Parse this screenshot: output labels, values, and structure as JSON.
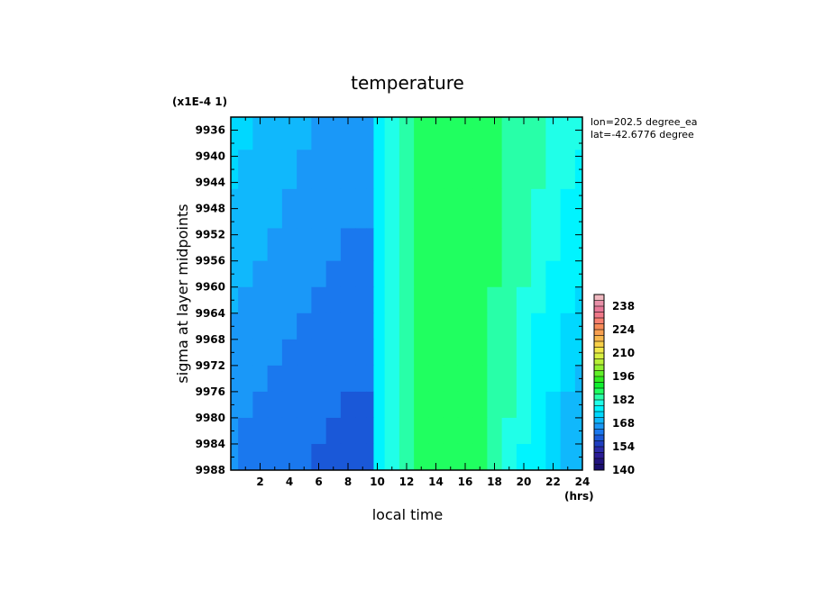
{
  "chart_data": {
    "type": "heatmap",
    "title": "temperature",
    "xlabel": "local time",
    "x_unit": "(hrs)",
    "ylabel": "sigma at layer midpoints",
    "y_scale_note": "(x1E-4 1)",
    "annotations": [
      "lon=202.5 degree_ea",
      "lat=-42.6776 degree"
    ],
    "xlim": [
      0,
      24
    ],
    "x_ticks": [
      "2",
      "4",
      "6",
      "8",
      "10",
      "12",
      "14",
      "16",
      "18",
      "20",
      "22",
      "24"
    ],
    "ylim": [
      9934,
      9988
    ],
    "y_ticks": [
      "9936",
      "9940",
      "9944",
      "9948",
      "9952",
      "9956",
      "9960",
      "9964",
      "9968",
      "9972",
      "9976",
      "9980",
      "9984",
      "9988"
    ],
    "colorbar": {
      "ticks": [
        "238",
        "224",
        "210",
        "196",
        "182",
        "168",
        "154",
        "140"
      ],
      "levels": [
        140,
        143.5,
        147,
        150.5,
        154,
        157.5,
        161,
        164.5,
        168,
        171.5,
        175,
        178.5,
        182,
        185.5,
        189,
        192.5,
        196,
        199.5,
        203,
        206.5,
        210,
        213.5,
        217,
        220.5,
        224,
        227.5,
        231,
        234.5,
        238,
        241.5,
        245
      ],
      "colors": [
        "#1a0f6e",
        "#22147e",
        "#2a1c96",
        "#2a2aa8",
        "#1f3ec0",
        "#1a58d8",
        "#1a78ee",
        "#1a98f8",
        "#10b8fc",
        "#00d8ff",
        "#00f4ff",
        "#20ffe8",
        "#28ffa8",
        "#20ff60",
        "#10f030",
        "#30ee20",
        "#60f028",
        "#90f030",
        "#b8f038",
        "#d8f040",
        "#f0e848",
        "#f8d048",
        "#f8b84c",
        "#f8a050",
        "#f88c58",
        "#f88070",
        "#f07888",
        "#e87898",
        "#e890a8",
        "#f0b8c0"
      ]
    },
    "x": [
      0,
      1,
      2,
      3,
      4,
      5,
      6,
      7,
      8,
      9,
      9.5,
      10,
      11,
      12,
      13,
      14,
      15,
      16,
      17,
      18,
      19,
      20,
      21,
      22,
      23,
      24
    ],
    "y": [
      9936,
      9942,
      9948,
      9954,
      9958,
      9962,
      9966,
      9970,
      9974,
      9978,
      9982,
      9986
    ],
    "values": [
      [
        172,
        172,
        171,
        170,
        169,
        168,
        167,
        166,
        166,
        166,
        166,
        177,
        181,
        184,
        186,
        187,
        187.5,
        187.5,
        187,
        186,
        185,
        183,
        182,
        181,
        180,
        179
      ],
      [
        172,
        171,
        170,
        169,
        168,
        167,
        166,
        166,
        165.5,
        165.5,
        165.5,
        177,
        181,
        184,
        186,
        187,
        187.5,
        187.5,
        187,
        186,
        185,
        183,
        182,
        181,
        179,
        178
      ],
      [
        171,
        170,
        169,
        168,
        167,
        166,
        165.5,
        165,
        165,
        164.5,
        164.5,
        177,
        181,
        184,
        186,
        187,
        187.5,
        187.5,
        187,
        186,
        184,
        182,
        181,
        180,
        178,
        177
      ],
      [
        170,
        169,
        168,
        167,
        166,
        165.5,
        165,
        164.5,
        164,
        164,
        164,
        177,
        181,
        184,
        186,
        187,
        187.5,
        187.5,
        187,
        186,
        184,
        182,
        180,
        179,
        177,
        176
      ],
      [
        169,
        168,
        167,
        166,
        165.5,
        165,
        164.5,
        164,
        163.5,
        163.5,
        163.5,
        177,
        181,
        184,
        186,
        187,
        187.5,
        187.5,
        187,
        186,
        184,
        182,
        180,
        178,
        176,
        175
      ],
      [
        168,
        167,
        166,
        165.5,
        165,
        164.5,
        163.5,
        163,
        163,
        163,
        163,
        177,
        181,
        184,
        186,
        187,
        187.5,
        187.5,
        187,
        185,
        183,
        181,
        179,
        177,
        175,
        174
      ],
      [
        167,
        166,
        165.5,
        165,
        164.5,
        163.5,
        163,
        162.5,
        162,
        162,
        162,
        177,
        181,
        184,
        186,
        187,
        187.5,
        187.5,
        186,
        185,
        183,
        181,
        178,
        176,
        174,
        173
      ],
      [
        166.5,
        165.5,
        165,
        164.5,
        164,
        163,
        162.5,
        162,
        161.5,
        161.5,
        161.5,
        177,
        181,
        184,
        186,
        187,
        187.5,
        187.5,
        186,
        185,
        183,
        180,
        178,
        175,
        173,
        172
      ],
      [
        166,
        165,
        164.5,
        164,
        163.5,
        162.5,
        162,
        161.5,
        161,
        161,
        161,
        177,
        181,
        184,
        186,
        187,
        187.5,
        187.5,
        186,
        184,
        182,
        180,
        177,
        175,
        172,
        171
      ],
      [
        165.5,
        164.5,
        164,
        163.5,
        163,
        162,
        161.5,
        161,
        160.5,
        160.5,
        160.5,
        177,
        181,
        184,
        186,
        187,
        187.5,
        187.5,
        186,
        184,
        182,
        179,
        176,
        174,
        171,
        170
      ],
      [
        165,
        164,
        163.5,
        163,
        162.5,
        161.5,
        161,
        160.5,
        160,
        160,
        160,
        177,
        181,
        184,
        186,
        187,
        187.5,
        187.5,
        186,
        184,
        181,
        179,
        176,
        173,
        171,
        169
      ],
      [
        164.5,
        163.5,
        163,
        162.5,
        162,
        161,
        160.5,
        159.5,
        159,
        159,
        159,
        177,
        181,
        184,
        186,
        187,
        187.5,
        187.5,
        186,
        184,
        181,
        178,
        175,
        172,
        170,
        168
      ]
    ]
  }
}
